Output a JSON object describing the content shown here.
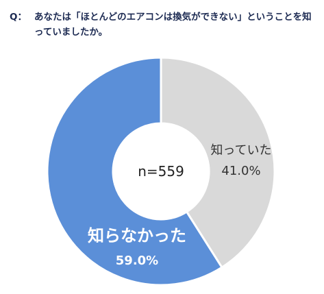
{
  "question": {
    "label": "Q：",
    "text": "あなたは「ほとんどのエアコンは換気ができない」ということを知っていましたか。"
  },
  "colors": {
    "known": "#d9d9d9",
    "unknown": "#5b8fd8",
    "edge": "#ffffff"
  },
  "chart_data": {
    "type": "pie",
    "title": "",
    "total_label": "n=559",
    "slices": [
      {
        "category": "知っていた",
        "value": 41.0,
        "value_label": "41.0%"
      },
      {
        "category": "知らなかった",
        "value": 59.0,
        "value_label": "59.0%"
      }
    ]
  }
}
